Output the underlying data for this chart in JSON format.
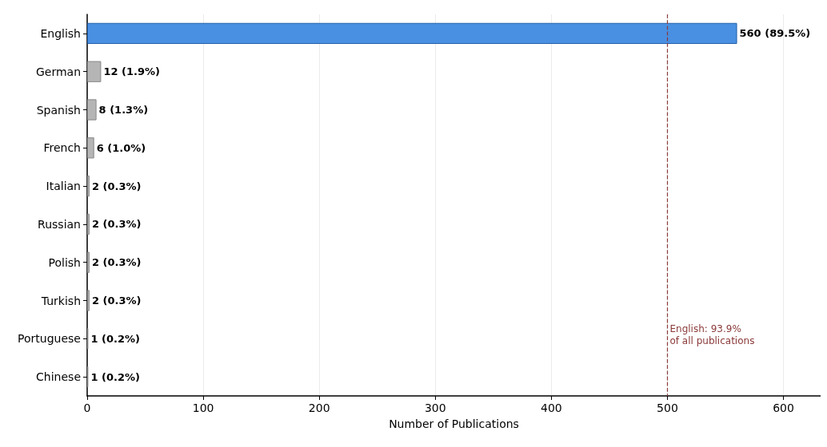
{
  "chart_data": {
    "type": "bar",
    "orientation": "horizontal",
    "xlabel": "Number of Publications",
    "categories": [
      "English",
      "German",
      "Spanish",
      "French",
      "Italian",
      "Russian",
      "Polish",
      "Turkish",
      "Portuguese",
      "Chinese"
    ],
    "values": [
      560,
      12,
      8,
      6,
      2,
      2,
      2,
      2,
      1,
      1
    ],
    "colors": [
      "#4a90e2",
      "#b5b5b5",
      "#b5b5b5",
      "#b5b5b5",
      "#b5b5b5",
      "#b5b5b5",
      "#b5b5b5",
      "#b5b5b5",
      "#b5b5b5",
      "#b5b5b5"
    ],
    "value_labels": [
      "560 (89.5%)",
      "12 (1.9%)",
      "8 (1.3%)",
      "6 (1.0%)",
      "2 (0.3%)",
      "2 (0.3%)",
      "2 (0.3%)",
      "2 (0.3%)",
      "1 (0.2%)",
      "1 (0.2%)"
    ],
    "xlim": [
      0,
      632
    ],
    "xticks": [
      0,
      100,
      200,
      300,
      400,
      500,
      600
    ],
    "grid": "x",
    "ref_lines": [
      {
        "axis": "x",
        "value": 500,
        "color": "#8b3a3a",
        "line_style": "dashed"
      }
    ],
    "annotations": [
      "English: 93.9%\nof all publications"
    ]
  }
}
